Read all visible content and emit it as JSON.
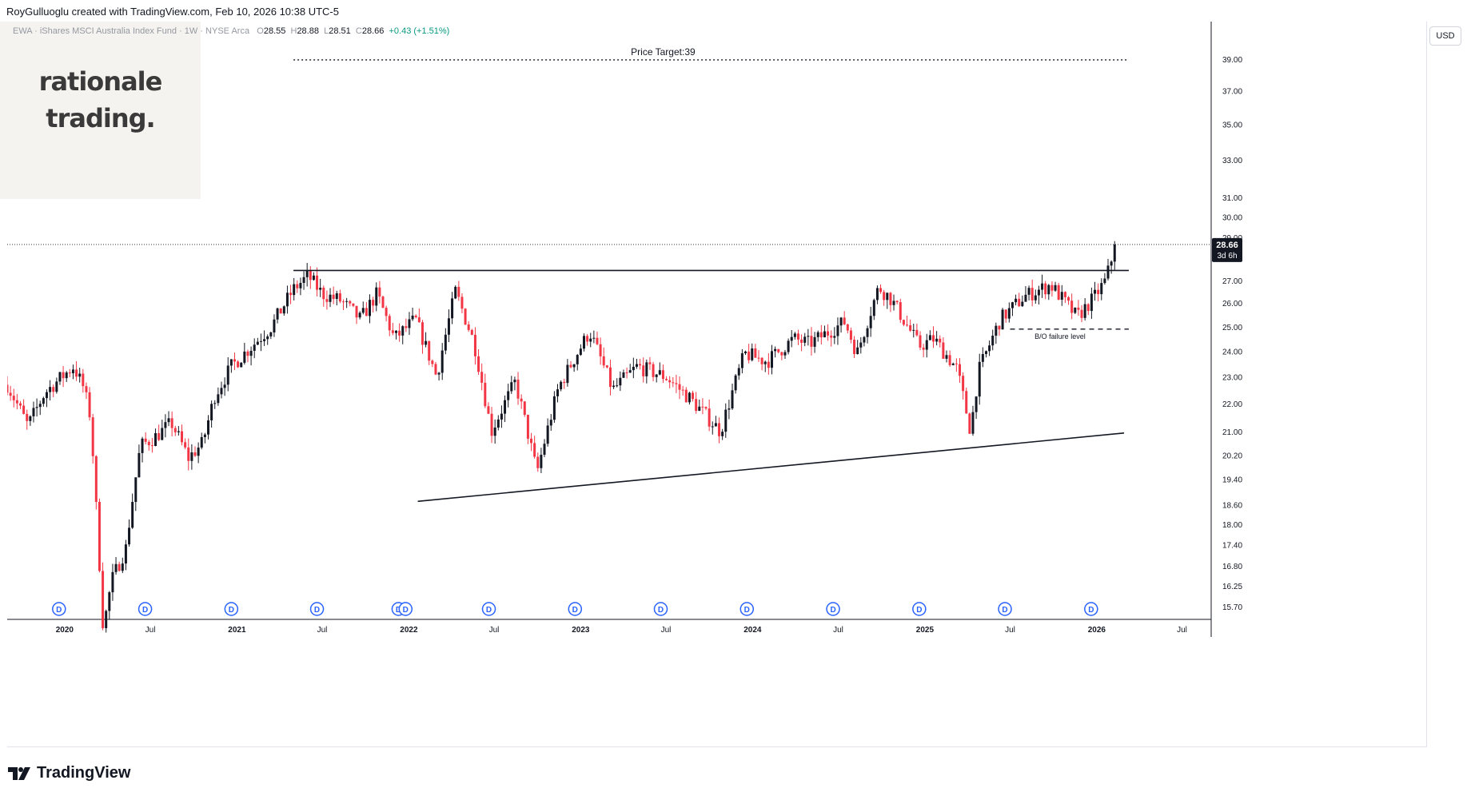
{
  "topbar": {
    "author_line": "RoyGulluoglu created with TradingView.com, Feb 10, 2026 10:38 UTC-5"
  },
  "symbol": {
    "description": "EWA · iShares MSCI Australia Index Fund · 1W · NYSE Arca",
    "o_label": "O",
    "o": "28.55",
    "h_label": "H",
    "h": "28.88",
    "l_label": "L",
    "l": "28.51",
    "c_label": "C",
    "c": "28.66",
    "change": "+0.43 (+1.51%)"
  },
  "logo": {
    "line1": "rationale",
    "line2": "trading."
  },
  "currency_button": "USD",
  "footer": {
    "brand": "TradingView"
  },
  "colors": {
    "up": "#131722",
    "down": "#f23645",
    "grid_text": "#131722",
    "dividend_badge": "#2962ff",
    "brand": "#131722"
  },
  "chart_data": {
    "type": "candlestick",
    "timeframe": "1W",
    "scale": "log",
    "ylim": [
      15.5,
      40
    ],
    "x_range": [
      "2019-09",
      "2026-09"
    ],
    "price_ticks": [
      "39.00",
      "37.00",
      "35.00",
      "33.00",
      "31.00",
      "30.00",
      "29.00",
      "27.00",
      "26.00",
      "25.00",
      "24.00",
      "23.00",
      "22.00",
      "21.00",
      "20.20",
      "19.40",
      "18.60",
      "18.00",
      "17.40",
      "16.80",
      "16.25",
      "15.70"
    ],
    "time_ticks": [
      {
        "label": "2020",
        "date": "2020-01-01",
        "bold": true
      },
      {
        "label": "Jul",
        "date": "2020-07-01",
        "bold": false
      },
      {
        "label": "2021",
        "date": "2021-01-01",
        "bold": true
      },
      {
        "label": "Jul",
        "date": "2021-07-01",
        "bold": false
      },
      {
        "label": "2022",
        "date": "2022-01-01",
        "bold": true
      },
      {
        "label": "Jul",
        "date": "2022-07-01",
        "bold": false
      },
      {
        "label": "2023",
        "date": "2023-01-01",
        "bold": true
      },
      {
        "label": "Jul",
        "date": "2023-07-01",
        "bold": false
      },
      {
        "label": "2024",
        "date": "2024-01-01",
        "bold": true
      },
      {
        "label": "Jul",
        "date": "2024-07-01",
        "bold": false
      },
      {
        "label": "2025",
        "date": "2025-01-01",
        "bold": true
      },
      {
        "label": "Jul",
        "date": "2025-07-01",
        "bold": false
      },
      {
        "label": "2026",
        "date": "2026-01-01",
        "bold": true
      },
      {
        "label": "Jul",
        "date": "2026-07-01",
        "bold": false
      }
    ],
    "last_price": {
      "value": 28.66,
      "label": "28.66",
      "countdown": "3d 6h"
    },
    "price_path": [
      [
        "2019-09-01",
        22.7
      ],
      [
        "2019-10-15",
        21.2
      ],
      [
        "2019-11-20",
        22.4
      ],
      [
        "2019-12-20",
        22.9
      ],
      [
        "2020-01-20",
        23.4
      ],
      [
        "2020-02-10",
        22.6
      ],
      [
        "2020-02-25",
        21.5
      ],
      [
        "2020-03-12",
        17.5
      ],
      [
        "2020-03-23",
        15.1
      ],
      [
        "2020-04-10",
        16.4
      ],
      [
        "2020-05-10",
        17.3
      ],
      [
        "2020-06-10",
        20.5
      ],
      [
        "2020-07-10",
        20.8
      ],
      [
        "2020-08-15",
        21.3
      ],
      [
        "2020-09-20",
        20.1
      ],
      [
        "2020-10-20",
        20.6
      ],
      [
        "2020-11-15",
        22.3
      ],
      [
        "2020-12-20",
        23.4
      ],
      [
        "2021-02-01",
        24.2
      ],
      [
        "2021-03-15",
        25.0
      ],
      [
        "2021-05-01",
        26.6
      ],
      [
        "2021-06-01",
        27.2
      ],
      [
        "2021-07-01",
        26.4
      ],
      [
        "2021-08-10",
        26.1
      ],
      [
        "2021-09-20",
        25.3
      ],
      [
        "2021-10-25",
        26.4
      ],
      [
        "2021-12-01",
        24.5
      ],
      [
        "2022-01-15",
        25.3
      ],
      [
        "2022-03-01",
        23.0
      ],
      [
        "2022-04-10",
        26.5
      ],
      [
        "2022-05-20",
        24.3
      ],
      [
        "2022-06-25",
        21.0
      ],
      [
        "2022-08-15",
        22.8
      ],
      [
        "2022-09-30",
        19.6
      ],
      [
        "2022-11-15",
        22.6
      ],
      [
        "2023-01-20",
        24.8
      ],
      [
        "2023-03-10",
        22.5
      ],
      [
        "2023-05-01",
        23.4
      ],
      [
        "2023-07-01",
        23.0
      ],
      [
        "2023-08-20",
        22.2
      ],
      [
        "2023-10-25",
        21.0
      ],
      [
        "2023-12-15",
        23.9
      ],
      [
        "2024-02-01",
        23.6
      ],
      [
        "2024-03-28",
        24.5
      ],
      [
        "2024-05-01",
        24.3
      ],
      [
        "2024-07-15",
        25.2
      ],
      [
        "2024-08-10",
        23.9
      ],
      [
        "2024-09-25",
        26.7
      ],
      [
        "2024-10-20",
        26.2
      ],
      [
        "2024-12-20",
        24.2
      ],
      [
        "2025-01-20",
        24.5
      ],
      [
        "2025-03-10",
        23.3
      ],
      [
        "2025-04-08",
        21.0
      ],
      [
        "2025-04-25",
        23.2
      ],
      [
        "2025-06-10",
        25.3
      ],
      [
        "2025-08-01",
        26.3
      ],
      [
        "2025-09-25",
        26.8
      ],
      [
        "2025-11-20",
        25.4
      ],
      [
        "2025-12-25",
        26.2
      ],
      [
        "2026-01-20",
        27.0
      ],
      [
        "2026-02-10",
        28.66
      ]
    ],
    "lines": [
      {
        "kind": "horizontal",
        "style": "solid",
        "y": 27.45,
        "x_start": "2021-05-01",
        "x_end": "2026-03-10"
      },
      {
        "kind": "horizontal",
        "style": "dotted",
        "y": 38.95,
        "x_start": "2021-05-01",
        "x_end": "2026-03-10"
      },
      {
        "kind": "horizontal",
        "style": "dashed",
        "y": 24.9,
        "x_start": "2025-07-01",
        "x_end": "2026-03-10"
      },
      {
        "kind": "trend",
        "style": "solid",
        "points": [
          [
            "2022-01-20",
            18.7
          ],
          [
            "2026-02-28",
            20.95
          ]
        ]
      }
    ],
    "annotations": [
      {
        "text": "Price Target:39",
        "x": "2023-06-25",
        "y": 38.95,
        "anchor": "above",
        "size": 12
      },
      {
        "text": "B/O failure level",
        "x": "2025-10-15",
        "y": 24.9,
        "anchor": "below",
        "size": 9
      }
    ],
    "dividends": {
      "label": "D",
      "dates": [
        "2019-12-20",
        "2020-06-20",
        "2020-12-20",
        "2021-06-20",
        "2021-12-10",
        "2021-12-25",
        "2022-06-20",
        "2022-12-20",
        "2023-06-20",
        "2023-12-20",
        "2024-06-20",
        "2024-12-20",
        "2025-06-20",
        "2025-12-20"
      ]
    }
  }
}
